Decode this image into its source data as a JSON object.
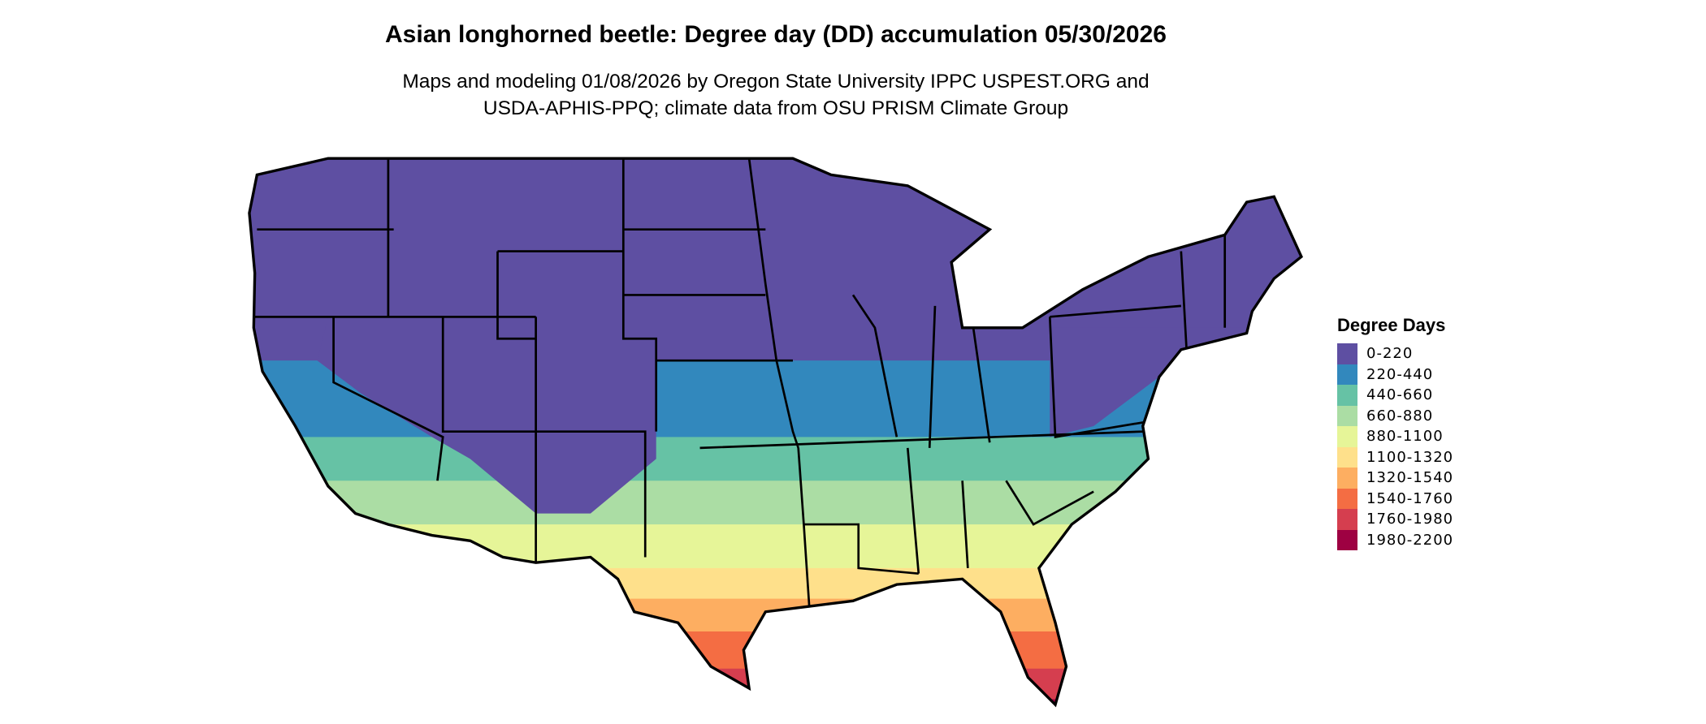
{
  "title": "Asian longhorned beetle: Degree day (DD) accumulation 05/30/2026",
  "subtitle_lines": [
    "Maps and modeling 01/08/2026 by Oregon State University IPPC USPEST.ORG and",
    "USDA-APHIS-PPQ; climate data from OSU PRISM Climate Group"
  ],
  "legend": {
    "title": "Degree Days",
    "items": [
      {
        "label": "0-220",
        "color": "#5e4fa2"
      },
      {
        "label": "220-440",
        "color": "#3288bd"
      },
      {
        "label": "440-660",
        "color": "#66c2a5"
      },
      {
        "label": "660-880",
        "color": "#abdda4"
      },
      {
        "label": "880-1100",
        "color": "#e6f598"
      },
      {
        "label": "1100-1320",
        "color": "#fee08b"
      },
      {
        "label": "1320-1540",
        "color": "#fdae61"
      },
      {
        "label": "1540-1760",
        "color": "#f46d43"
      },
      {
        "label": "1760-1980",
        "color": "#d53e4f"
      },
      {
        "label": "1980-2200",
        "color": "#9e0142"
      }
    ]
  }
}
